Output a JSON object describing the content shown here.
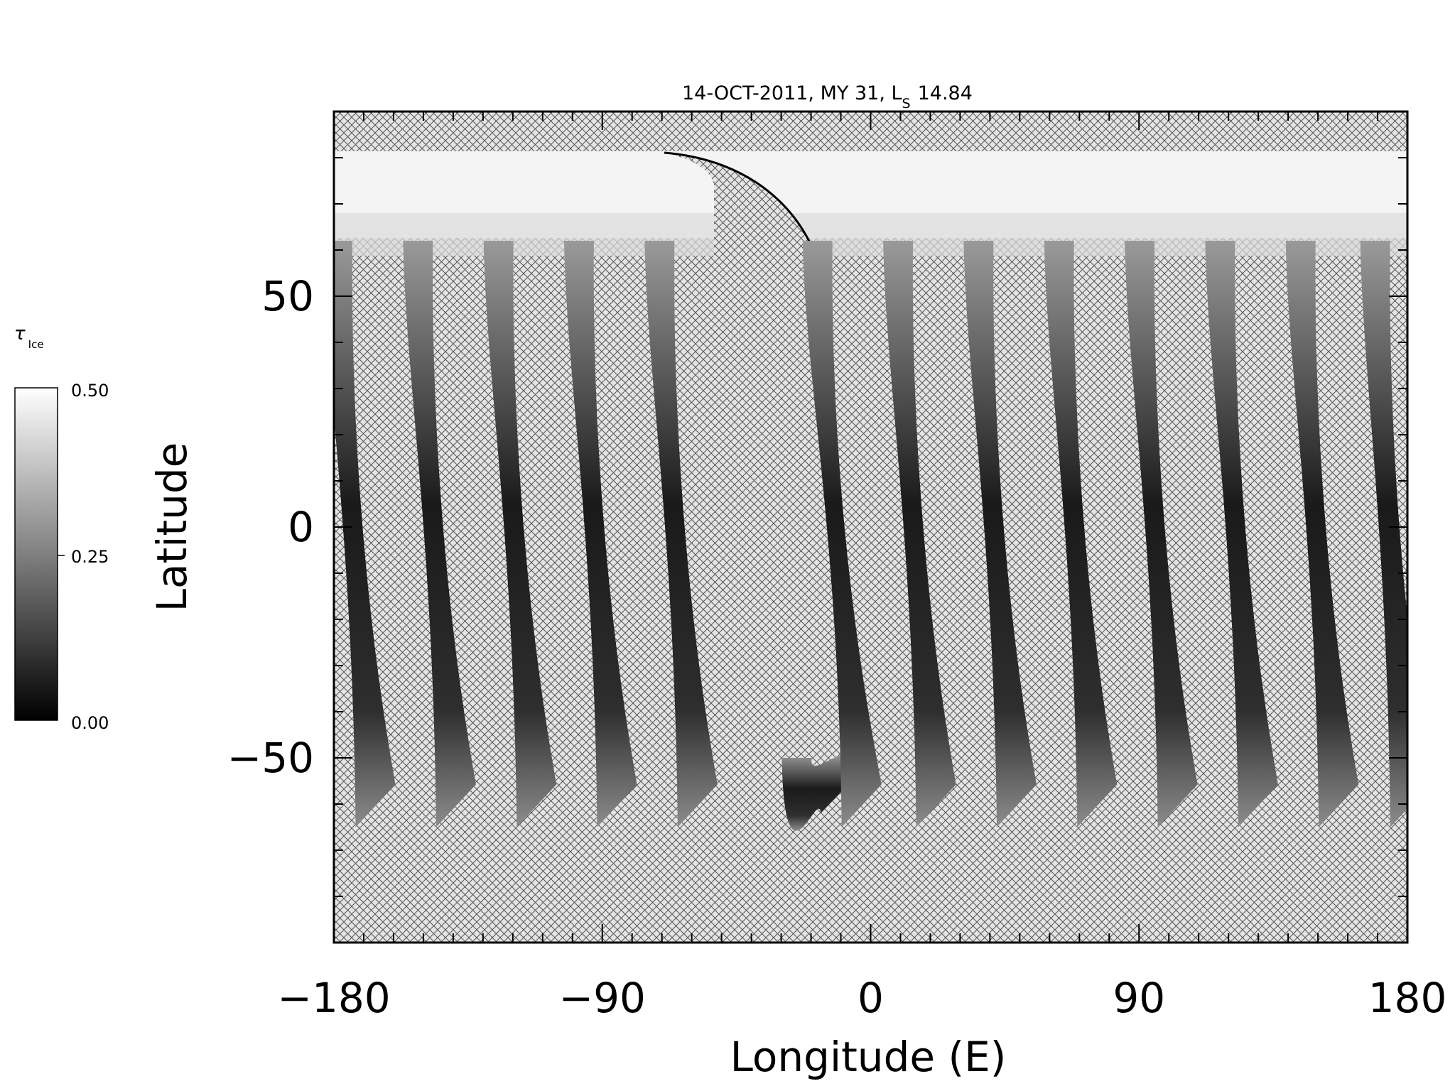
{
  "chart_data": {
    "type": "heatmap",
    "title": "14-OCT-2011, MY 31,  L",
    "title_subscript": "S",
    "title_value": "14.84",
    "xlabel": "Longitude (E)",
    "ylabel": "Latitude",
    "xlim": [
      -180,
      180
    ],
    "ylim": [
      -90,
      90
    ],
    "x_ticks": [
      -180,
      -90,
      0,
      90,
      180
    ],
    "x_tick_labels": [
      "−180",
      "−90",
      "0",
      "90",
      "180"
    ],
    "y_ticks": [
      -50,
      0,
      50
    ],
    "y_tick_labels": [
      "−50",
      "0",
      "50"
    ],
    "grid": false,
    "missing_data_pattern": "crosshatch",
    "colorbar": {
      "symbol": "τ",
      "subscript": "Ice",
      "min": 0.0,
      "mid": 0.25,
      "max": 0.5,
      "labels": [
        "0.50",
        "0.25",
        "0.00"
      ],
      "colors": [
        "#ffffff",
        "#000000"
      ]
    },
    "swaths": [
      {
        "top_lon": -180,
        "bottom_lon": -167,
        "lat_top": 62,
        "lat_bottom": -65
      },
      {
        "top_lon": -153,
        "bottom_lon": -140,
        "lat_top": 62,
        "lat_bottom": -65
      },
      {
        "top_lon": -126,
        "bottom_lon": -113,
        "lat_top": 62,
        "lat_bottom": -65
      },
      {
        "top_lon": -99,
        "bottom_lon": -86,
        "lat_top": 62,
        "lat_bottom": -65
      },
      {
        "top_lon": -72,
        "bottom_lon": -59,
        "lat_top": 62,
        "lat_bottom": -65
      },
      {
        "top_lon": -26,
        "bottom_lon": -11,
        "lat_top": -50,
        "lat_bottom": -62
      },
      {
        "top_lon": -19,
        "bottom_lon": -4,
        "lat_top": 62,
        "lat_bottom": -65
      },
      {
        "top_lon": 8,
        "bottom_lon": 21,
        "lat_top": 62,
        "lat_bottom": -65
      },
      {
        "top_lon": 35,
        "bottom_lon": 48,
        "lat_top": 62,
        "lat_bottom": -65
      },
      {
        "top_lon": 62,
        "bottom_lon": 75,
        "lat_top": 62,
        "lat_bottom": -65
      },
      {
        "top_lon": 89,
        "bottom_lon": 102,
        "lat_top": 62,
        "lat_bottom": -65
      },
      {
        "top_lon": 116,
        "bottom_lon": 129,
        "lat_top": 62,
        "lat_bottom": -65
      },
      {
        "top_lon": 143,
        "bottom_lon": 156,
        "lat_top": 62,
        "lat_bottom": -65
      },
      {
        "top_lon": 168,
        "bottom_lon": 180,
        "lat_top": 62,
        "lat_bottom": -65
      }
    ]
  }
}
